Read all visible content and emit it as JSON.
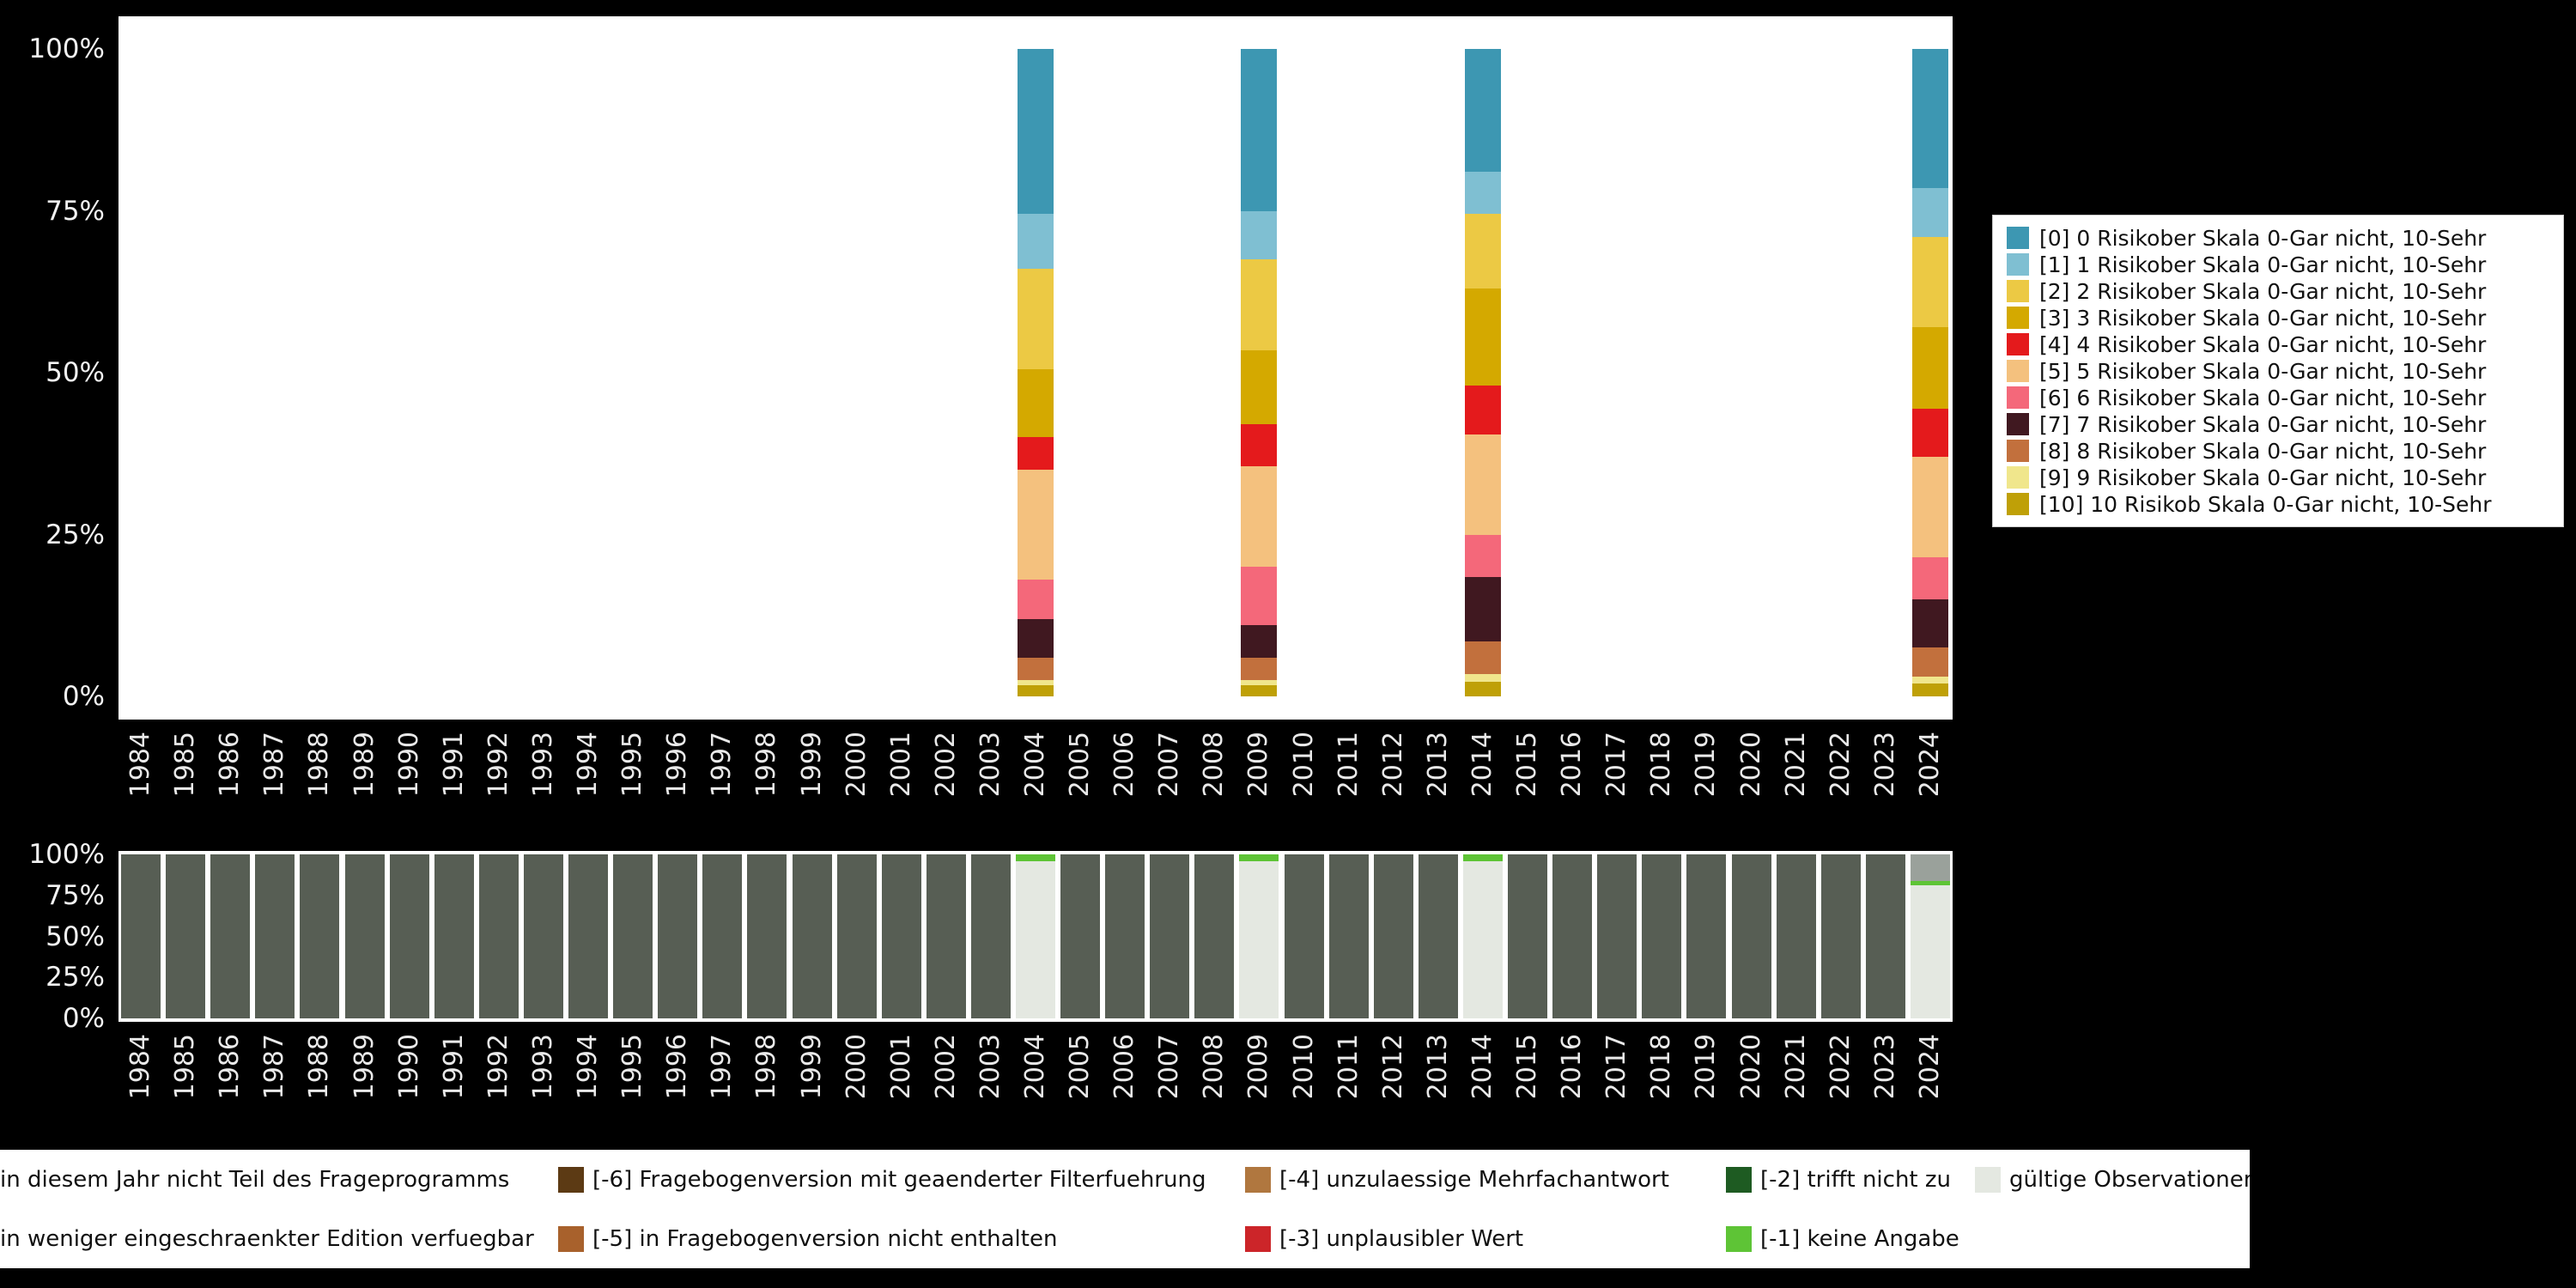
{
  "page": {
    "background": "#000000",
    "panel_background": "#ffffff"
  },
  "chart_data": [
    {
      "id": "answers-distribution",
      "type": "bar",
      "stacked": true,
      "title": "",
      "xlabel": "",
      "ylabel": "",
      "ylim": [
        0,
        100
      ],
      "unit": "%",
      "grid": false,
      "legend_position": "right",
      "y_ticks_top_to_bottom": [
        "100%",
        "75%",
        "50%",
        "25%",
        "0%"
      ],
      "x": [
        "1984",
        "1985",
        "1986",
        "1987",
        "1988",
        "1989",
        "1990",
        "1991",
        "1992",
        "1993",
        "1994",
        "1995",
        "1996",
        "1997",
        "1998",
        "1999",
        "2000",
        "2001",
        "2002",
        "2003",
        "2004",
        "2005",
        "2006",
        "2007",
        "2008",
        "2009",
        "2010",
        "2011",
        "2012",
        "2013",
        "2014",
        "2015",
        "2016",
        "2017",
        "2018",
        "2019",
        "2020",
        "2021",
        "2022",
        "2023",
        "2024"
      ],
      "series": [
        {
          "label": "[0] 0 Risikober Skala 0-Gar nicht, 10-Sehr",
          "color": "#3d97b2",
          "values": {
            "2004": 25.5,
            "2009": 25,
            "2014": 19,
            "2024": 21.5
          }
        },
        {
          "label": "[1] 1 Risikober Skala 0-Gar nicht, 10-Sehr",
          "color": "#7fbfd2",
          "values": {
            "2004": 8.5,
            "2009": 7.5,
            "2014": 6.5,
            "2024": 7.5
          }
        },
        {
          "label": "[2] 2 Risikober Skala 0-Gar nicht, 10-Sehr",
          "color": "#ecc944",
          "values": {
            "2004": 15.5,
            "2009": 14,
            "2014": 11.5,
            "2024": 14
          }
        },
        {
          "label": "[3] 3 Risikober Skala 0-Gar nicht, 10-Sehr",
          "color": "#d4a900",
          "values": {
            "2004": 10.5,
            "2009": 11.5,
            "2014": 15,
            "2024": 12.5
          }
        },
        {
          "label": "[4] 4 Risikober Skala 0-Gar nicht, 10-Sehr",
          "color": "#e41a1c",
          "values": {
            "2004": 5,
            "2009": 6.5,
            "2014": 7.5,
            "2024": 7.5
          }
        },
        {
          "label": "[5] 5 Risikober Skala 0-Gar nicht, 10-Sehr",
          "color": "#f4c17e",
          "values": {
            "2004": 17,
            "2009": 15.5,
            "2014": 15.5,
            "2024": 15.5
          }
        },
        {
          "label": "[6] 6 Risikober Skala 0-Gar nicht, 10-Sehr",
          "color": "#f4687a",
          "values": {
            "2004": 6,
            "2009": 9,
            "2014": 6.5,
            "2024": 6.5
          }
        },
        {
          "label": "[7] 7 Risikober Skala 0-Gar nicht, 10-Sehr",
          "color": "#401820",
          "values": {
            "2004": 6,
            "2009": 5,
            "2014": 10,
            "2024": 7.5
          }
        },
        {
          "label": "[8] 8 Risikober Skala 0-Gar nicht, 10-Sehr",
          "color": "#c2703d",
          "values": {
            "2004": 3.5,
            "2009": 3.5,
            "2014": 5,
            "2024": 4.5
          }
        },
        {
          "label": "[9] 9 Risikober Skala 0-Gar nicht, 10-Sehr",
          "color": "#f0e68c",
          "values": {
            "2004": 0.8,
            "2009": 0.8,
            "2014": 1.3,
            "2024": 1
          }
        },
        {
          "label": "[10] 10 Risikob Skala 0-Gar nicht, 10-Sehr",
          "color": "#bfa007",
          "values": {
            "2004": 1.7,
            "2009": 1.7,
            "2014": 2.2,
            "2024": 2
          }
        }
      ],
      "stacking_note": "segments stacked bottom-to-top in reverse series order ([10] at bottom, [0] on top)"
    },
    {
      "id": "missings-distribution",
      "type": "bar",
      "stacked": true,
      "title": "",
      "xlabel": "",
      "ylabel": "",
      "ylim": [
        0,
        100
      ],
      "unit": "%",
      "grid": false,
      "legend_position": "bottom",
      "y_ticks_top_to_bottom": [
        "100%",
        "75%",
        "50%",
        "25%",
        "0%"
      ],
      "x": [
        "1984",
        "1985",
        "1986",
        "1987",
        "1988",
        "1989",
        "1990",
        "1991",
        "1992",
        "1993",
        "1994",
        "1995",
        "1996",
        "1997",
        "1998",
        "1999",
        "2000",
        "2001",
        "2002",
        "2003",
        "2004",
        "2005",
        "2006",
        "2007",
        "2008",
        "2009",
        "2010",
        "2011",
        "2012",
        "2013",
        "2014",
        "2015",
        "2016",
        "2017",
        "2018",
        "2019",
        "2020",
        "2021",
        "2022",
        "2023",
        "2024"
      ],
      "series": [
        {
          "label": "in diesem Jahr nicht Teil des Frageprogramms",
          "color": "#575e54",
          "values": {
            "1984": 100,
            "1985": 100,
            "1986": 100,
            "1987": 100,
            "1988": 100,
            "1989": 100,
            "1990": 100,
            "1991": 100,
            "1992": 100,
            "1993": 100,
            "1994": 100,
            "1995": 100,
            "1996": 100,
            "1997": 100,
            "1998": 100,
            "1999": 100,
            "2000": 100,
            "2001": 100,
            "2002": 100,
            "2003": 100,
            "2005": 100,
            "2006": 100,
            "2007": 100,
            "2008": 100,
            "2010": 100,
            "2011": 100,
            "2012": 100,
            "2013": 100,
            "2015": 100,
            "2016": 100,
            "2017": 100,
            "2018": 100,
            "2019": 100,
            "2020": 100,
            "2021": 100,
            "2022": 100,
            "2023": 100
          }
        },
        {
          "label": "in weniger eingeschraenkter Edition verfuegbar",
          "color": "#9aa19b",
          "values": {
            "2024": 16
          }
        },
        {
          "label": "[-6] Fragebogenversion mit geaenderter Filterfuehrung",
          "color": "#5c3a14",
          "values": {}
        },
        {
          "label": "[-5] in Fragebogenversion nicht enthalten",
          "color": "#a8612c",
          "values": {}
        },
        {
          "label": "[-4] unzulaessige Mehrfachantwort",
          "color": "#b0773f",
          "values": {}
        },
        {
          "label": "[-3] unplausibler Wert",
          "color": "#cc2529",
          "values": {}
        },
        {
          "label": "[-2] trifft nicht zu",
          "color": "#1e5b22",
          "values": {}
        },
        {
          "label": "[-1] keine Angabe",
          "color": "#5ec436",
          "values": {
            "2004": 4,
            "2009": 4,
            "2014": 4,
            "2024": 3
          }
        },
        {
          "label": "gültige Observationen",
          "color": "#e4e8e1",
          "values": {
            "2004": 96,
            "2009": 96,
            "2014": 96,
            "2024": 81
          }
        }
      ],
      "stacking_note": "segments stacked bottom-to-top in reverse series order (gültige Observationen at bottom)"
    }
  ]
}
